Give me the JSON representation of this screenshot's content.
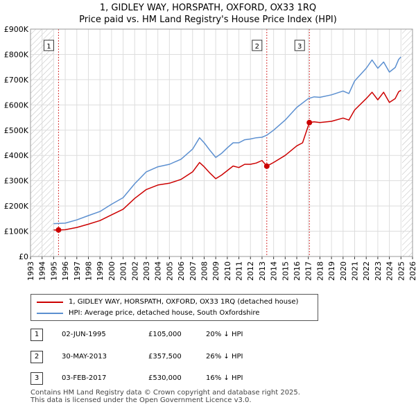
{
  "title_line1": "1, GIDLEY WAY, HORSPATH, OXFORD, OX33 1RQ",
  "title_line2": "Price paid vs. HM Land Registry's House Price Index (HPI)",
  "colors": {
    "property": "#cc0000",
    "hpi": "#5b8fd0",
    "marker_box": "#cc0000"
  },
  "chart_data": {
    "type": "line",
    "ylim": [
      0,
      900000
    ],
    "xlim": [
      1993,
      2026
    ],
    "y_ticks": [
      {
        "value": 0,
        "label": "£0"
      },
      {
        "value": 100000,
        "label": "£100K"
      },
      {
        "value": 200000,
        "label": "£200K"
      },
      {
        "value": 300000,
        "label": "£300K"
      },
      {
        "value": 400000,
        "label": "£400K"
      },
      {
        "value": 500000,
        "label": "£500K"
      },
      {
        "value": 600000,
        "label": "£600K"
      },
      {
        "value": 700000,
        "label": "£700K"
      },
      {
        "value": 800000,
        "label": "£800K"
      },
      {
        "value": 900000,
        "label": "£900K"
      }
    ],
    "x_ticks": [
      "1993",
      "1994",
      "1995",
      "1996",
      "1997",
      "1998",
      "1999",
      "2000",
      "2001",
      "2002",
      "2003",
      "2004",
      "2005",
      "2006",
      "2007",
      "2008",
      "2009",
      "2010",
      "2011",
      "2012",
      "2013",
      "2014",
      "2015",
      "2016",
      "2017",
      "2018",
      "2019",
      "2020",
      "2021",
      "2022",
      "2023",
      "2024",
      "2025",
      "2026"
    ],
    "hatched_ranges": [
      [
        1993,
        1995.0
      ],
      [
        2025.1,
        2026
      ]
    ],
    "series": [
      {
        "name": "1, GIDLEY WAY, HORSPATH, OXFORD, OX33 1RQ (detached house)",
        "color": "#cc0000",
        "points": [
          [
            1995.0,
            105000
          ],
          [
            1995.42,
            105000
          ],
          [
            1996,
            106000
          ],
          [
            1997,
            115000
          ],
          [
            1998,
            128000
          ],
          [
            1999,
            142000
          ],
          [
            2000,
            165000
          ],
          [
            2001,
            187000
          ],
          [
            2002,
            230000
          ],
          [
            2003,
            265000
          ],
          [
            2004,
            283000
          ],
          [
            2005,
            290000
          ],
          [
            2006,
            305000
          ],
          [
            2007,
            335000
          ],
          [
            2007.6,
            372000
          ],
          [
            2008,
            355000
          ],
          [
            2008.5,
            330000
          ],
          [
            2009,
            308000
          ],
          [
            2009.5,
            322000
          ],
          [
            2010,
            340000
          ],
          [
            2010.5,
            358000
          ],
          [
            2011,
            352000
          ],
          [
            2011.5,
            365000
          ],
          [
            2012,
            365000
          ],
          [
            2012.5,
            370000
          ],
          [
            2013.0,
            380000
          ],
          [
            2013.41,
            357500
          ],
          [
            2014,
            372000
          ],
          [
            2015,
            400000
          ],
          [
            2016,
            438000
          ],
          [
            2016.5,
            450000
          ],
          [
            2017.09,
            530000
          ],
          [
            2017.5,
            533000
          ],
          [
            2018,
            530000
          ],
          [
            2019,
            535000
          ],
          [
            2020,
            548000
          ],
          [
            2020.5,
            540000
          ],
          [
            2021,
            580000
          ],
          [
            2022,
            625000
          ],
          [
            2022.5,
            650000
          ],
          [
            2023,
            620000
          ],
          [
            2023.5,
            650000
          ],
          [
            2024,
            610000
          ],
          [
            2024.5,
            625000
          ],
          [
            2024.8,
            652000
          ],
          [
            2025.0,
            658000
          ]
        ]
      },
      {
        "name": "HPI: Average price, detached house, South Oxfordshire",
        "color": "#5b8fd0",
        "points": [
          [
            1995.0,
            130000
          ],
          [
            1996,
            132000
          ],
          [
            1997,
            145000
          ],
          [
            1998,
            162000
          ],
          [
            1999,
            178000
          ],
          [
            2000,
            207000
          ],
          [
            2001,
            233000
          ],
          [
            2002,
            288000
          ],
          [
            2003,
            335000
          ],
          [
            2004,
            355000
          ],
          [
            2005,
            365000
          ],
          [
            2006,
            385000
          ],
          [
            2007,
            425000
          ],
          [
            2007.6,
            470000
          ],
          [
            2008,
            450000
          ],
          [
            2008.5,
            420000
          ],
          [
            2009,
            392000
          ],
          [
            2009.5,
            408000
          ],
          [
            2010,
            430000
          ],
          [
            2010.5,
            450000
          ],
          [
            2011,
            450000
          ],
          [
            2011.5,
            462000
          ],
          [
            2012,
            465000
          ],
          [
            2012.5,
            470000
          ],
          [
            2013,
            472000
          ],
          [
            2013.4,
            480000
          ],
          [
            2014,
            500000
          ],
          [
            2015,
            540000
          ],
          [
            2016,
            590000
          ],
          [
            2017,
            625000
          ],
          [
            2017.5,
            632000
          ],
          [
            2018,
            630000
          ],
          [
            2019,
            640000
          ],
          [
            2020,
            655000
          ],
          [
            2020.5,
            645000
          ],
          [
            2021,
            695000
          ],
          [
            2022,
            745000
          ],
          [
            2022.5,
            778000
          ],
          [
            2023,
            745000
          ],
          [
            2023.5,
            770000
          ],
          [
            2024,
            730000
          ],
          [
            2024.5,
            748000
          ],
          [
            2024.8,
            780000
          ],
          [
            2025.0,
            790000
          ]
        ]
      }
    ],
    "sales": [
      {
        "label": "1",
        "x": 1995.42,
        "price": 105000
      },
      {
        "label": "2",
        "x": 2013.41,
        "price": 357500
      },
      {
        "label": "3",
        "x": 2017.09,
        "price": 530000
      }
    ]
  },
  "legend": {
    "property_label": "1, GIDLEY WAY, HORSPATH, OXFORD, OX33 1RQ (detached house)",
    "hpi_label": "HPI: Average price, detached house, South Oxfordshire"
  },
  "transactions": [
    {
      "num": "1",
      "date": "02-JUN-1995",
      "price": "£105,000",
      "hpi": "20% ↓ HPI"
    },
    {
      "num": "2",
      "date": "30-MAY-2013",
      "price": "£357,500",
      "hpi": "26% ↓ HPI"
    },
    {
      "num": "3",
      "date": "03-FEB-2017",
      "price": "£530,000",
      "hpi": "16% ↓ HPI"
    }
  ],
  "footer": {
    "line1": "Contains HM Land Registry data © Crown copyright and database right 2025.",
    "line2": "This data is licensed under the Open Government Licence v3.0."
  }
}
